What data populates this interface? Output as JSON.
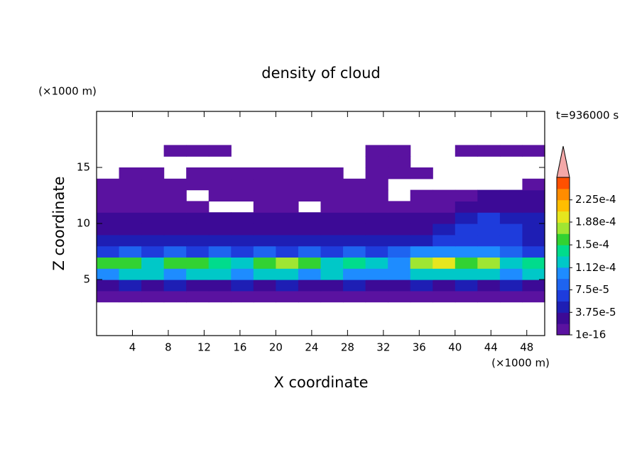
{
  "chart_data": {
    "type": "contour",
    "title": "density of cloud",
    "x_label": "X coordinate",
    "y_label": "Z coordinate",
    "x_unit": "(×1000 m)",
    "y_unit": "(×1000 m)",
    "time_label": "t=936000 s",
    "xlim": [
      0,
      50
    ],
    "ylim": [
      0,
      20
    ],
    "xticks": [
      4,
      8,
      12,
      16,
      20,
      24,
      28,
      32,
      36,
      40,
      44,
      48
    ],
    "yticks": [
      5,
      10,
      15
    ],
    "x": [
      1.25,
      3.75,
      6.25,
      8.75,
      11.25,
      13.75,
      16.25,
      18.75,
      21.25,
      23.75,
      26.25,
      28.75,
      31.25,
      33.75,
      36.25,
      38.75,
      41.25,
      43.75,
      46.25,
      48.75
    ],
    "y": [
      0.5,
      1.5,
      2.5,
      3.5,
      4.5,
      5.5,
      6.5,
      7.5,
      8.5,
      9.5,
      10.5,
      11.5,
      12.5,
      13.5,
      14.5,
      15.5,
      16.5,
      17.5,
      18.5,
      19.5
    ],
    "z": [
      [
        null,
        null,
        null,
        null,
        null,
        null,
        null,
        null,
        null,
        null,
        null,
        null,
        null,
        null,
        null,
        null,
        null,
        null,
        null,
        null
      ],
      [
        null,
        null,
        null,
        null,
        null,
        null,
        null,
        null,
        null,
        null,
        null,
        null,
        null,
        null,
        null,
        null,
        null,
        null,
        null,
        null
      ],
      [
        null,
        null,
        null,
        null,
        null,
        null,
        null,
        null,
        null,
        null,
        null,
        null,
        null,
        null,
        null,
        null,
        null,
        null,
        null,
        null
      ],
      [
        1e-05,
        1e-05,
        1e-05,
        1e-05,
        1e-05,
        1e-05,
        1e-05,
        1e-05,
        1e-05,
        1e-05,
        1e-05,
        1e-05,
        1e-05,
        1e-05,
        1e-05,
        1e-05,
        1e-05,
        1e-05,
        1e-05,
        1e-05
      ],
      [
        3e-05,
        4e-05,
        3e-05,
        4e-05,
        3e-05,
        3e-05,
        4e-05,
        3e-05,
        4e-05,
        3e-05,
        3e-05,
        4e-05,
        3e-05,
        3e-05,
        4e-05,
        3e-05,
        4e-05,
        3e-05,
        4e-05,
        3e-05
      ],
      [
        0.00011,
        0.00013,
        0.00012,
        0.00011,
        0.00013,
        0.00012,
        0.00011,
        0.00013,
        0.00012,
        0.00011,
        0.00012,
        0.00011,
        0.0001,
        0.00011,
        0.00013,
        0.00012,
        0.00013,
        0.00012,
        0.00011,
        0.00012
      ],
      [
        0.00016,
        0.00015,
        0.00012,
        0.00015,
        0.00016,
        0.00014,
        0.00012,
        0.00016,
        0.00017,
        0.00015,
        0.00013,
        0.00014,
        0.00013,
        0.00011,
        0.00017,
        0.00019,
        0.00016,
        0.00017,
        0.00013,
        0.00014
      ],
      [
        7e-05,
        8e-05,
        7e-05,
        8e-05,
        7e-05,
        8e-05,
        7e-05,
        8e-05,
        7e-05,
        8e-05,
        7e-05,
        8e-05,
        7e-05,
        8e-05,
        0.0001,
        0.0001,
        0.0001,
        0.0001,
        8e-05,
        7e-05
      ],
      [
        4e-05,
        4e-05,
        5e-05,
        4e-05,
        4e-05,
        5e-05,
        4e-05,
        4e-05,
        5e-05,
        4e-05,
        4e-05,
        5e-05,
        4e-05,
        4e-05,
        5e-05,
        6e-05,
        7e-05,
        7e-05,
        6e-05,
        5e-05
      ],
      [
        3e-05,
        3e-05,
        3e-05,
        3e-05,
        3e-05,
        3e-05,
        3e-05,
        3e-05,
        3e-05,
        3e-05,
        3e-05,
        3e-05,
        3e-05,
        3e-05,
        3e-05,
        4e-05,
        6e-05,
        7e-05,
        6e-05,
        5e-05
      ],
      [
        2e-05,
        2e-05,
        2e-05,
        2e-05,
        2e-05,
        2e-05,
        2e-05,
        2e-05,
        2e-05,
        2e-05,
        2e-05,
        2e-05,
        2e-05,
        2e-05,
        2e-05,
        3e-05,
        5e-05,
        6e-05,
        5e-05,
        4e-05
      ],
      [
        1.5e-05,
        1.5e-05,
        1.5e-05,
        1.5e-05,
        1.5e-05,
        null,
        null,
        1.5e-05,
        1.5e-05,
        null,
        1.5e-05,
        1.5e-05,
        1.5e-05,
        1.5e-05,
        1.5e-05,
        1.5e-05,
        2e-05,
        3e-05,
        3e-05,
        3e-05
      ],
      [
        1e-05,
        1e-05,
        1e-05,
        1e-05,
        null,
        1e-05,
        1e-05,
        1e-05,
        1e-05,
        1e-05,
        1e-05,
        1e-05,
        1e-05,
        null,
        1e-05,
        1e-05,
        1e-05,
        2e-05,
        2e-05,
        2e-05
      ],
      [
        1e-05,
        8e-06,
        8e-06,
        8e-06,
        8e-06,
        8e-06,
        8e-06,
        8e-06,
        8e-06,
        8e-06,
        8e-06,
        8e-06,
        8e-06,
        null,
        null,
        null,
        null,
        null,
        null,
        8e-06
      ],
      [
        null,
        6e-06,
        6e-06,
        null,
        6e-06,
        6e-06,
        6e-06,
        6e-06,
        6e-06,
        6e-06,
        6e-06,
        null,
        6e-06,
        6e-06,
        6e-06,
        null,
        null,
        null,
        null,
        null
      ],
      [
        null,
        null,
        null,
        null,
        null,
        null,
        null,
        null,
        null,
        null,
        null,
        null,
        5e-06,
        5e-06,
        null,
        null,
        null,
        null,
        null,
        null
      ],
      [
        null,
        null,
        null,
        5e-06,
        5e-06,
        5e-06,
        null,
        null,
        null,
        null,
        null,
        null,
        5e-06,
        5e-06,
        null,
        null,
        5e-06,
        5e-06,
        5e-06,
        5e-06
      ],
      [
        null,
        null,
        null,
        null,
        null,
        null,
        null,
        null,
        null,
        null,
        null,
        null,
        null,
        null,
        null,
        null,
        null,
        null,
        null,
        null
      ],
      [
        null,
        null,
        null,
        null,
        null,
        null,
        null,
        null,
        null,
        null,
        null,
        null,
        null,
        null,
        null,
        null,
        null,
        null,
        null,
        null
      ],
      [
        null,
        null,
        null,
        null,
        null,
        null,
        null,
        null,
        null,
        null,
        null,
        null,
        null,
        null,
        null,
        null,
        null,
        null,
        null,
        null
      ]
    ],
    "colorbar": {
      "clim": [
        0,
        0.0002625
      ],
      "colors": [
        "#5a12a0",
        "#3c0a96",
        "#1e1eb4",
        "#1e3cdc",
        "#1e64f0",
        "#1e8cff",
        "#00c8c8",
        "#00dc8c",
        "#32d232",
        "#a0e632",
        "#e6e61e",
        "#ffbe00",
        "#ff8c00",
        "#ff5000"
      ],
      "over_color": "#f4a8a8",
      "ticks": [
        1e-16,
        {
          "value": 3.75e-05,
          "label": "3.75e-5"
        },
        {
          "value": 7.5e-05,
          "label": "7.5e-5"
        },
        {
          "value": 0.000112,
          "label": "1.12e-4"
        },
        {
          "value": 0.00015,
          "label": "1.5e-4"
        },
        {
          "value": 0.000188,
          "label": "1.88e-4"
        },
        {
          "value": 0.000225,
          "label": "2.25e-4"
        }
      ]
    }
  }
}
